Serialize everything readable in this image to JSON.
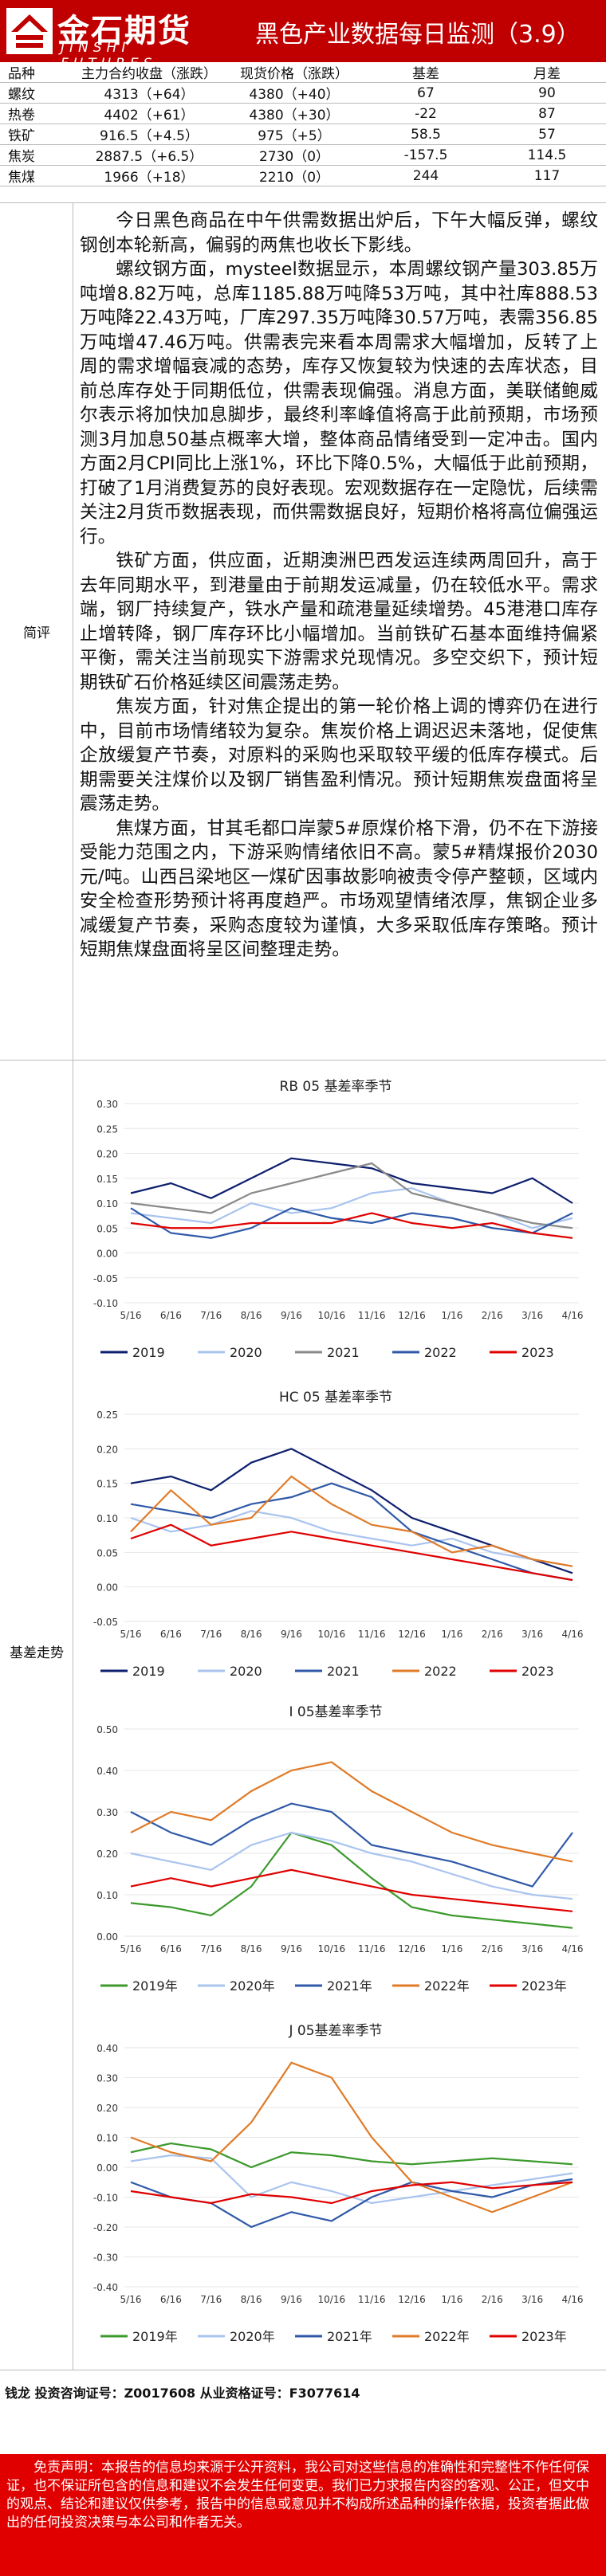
{
  "header": {
    "logo_cn": "金石期货",
    "logo_en": "JINSHI FUTURES",
    "title": "黑色产业数据每日监测（3.9）"
  },
  "table": {
    "headers": [
      "品种",
      "主力合约收盘（涨跌）",
      "现货价格（涨跌）",
      "基差",
      "月差"
    ],
    "rows": [
      [
        "螺纹",
        "4313（+64）",
        "4380（+40）",
        "67",
        "90"
      ],
      [
        "热卷",
        "4402（+61）",
        "4380（+30）",
        "-22",
        "87"
      ],
      [
        "铁矿",
        "916.5（+4.5）",
        "975（+5）",
        "58.5",
        "57"
      ],
      [
        "焦炭",
        "2887.5（+6.5）",
        "2730（0）",
        "-157.5",
        "114.5"
      ],
      [
        "焦煤",
        "1966（+18）",
        "2210（0）",
        "244",
        "117"
      ]
    ]
  },
  "labels": {
    "comment": "简评",
    "basis": "基差走势"
  },
  "comment": [
    "今日黑色商品在中午供需数据出炉后，下午大幅反弹，螺纹钢创本轮新高，偏弱的两焦也收长下影线。",
    "螺纹钢方面，mysteel数据显示，本周螺纹钢产量303.85万吨增8.82万吨，总库1185.88万吨降53万吨，其中社库888.53万吨降22.43万吨，厂库297.35万吨降30.57万吨，表需356.85万吨增47.46万吨。供需表完来看本周需求大幅增加，反转了上周的需求增幅衰减的态势，库存又恢复较为快速的去库状态，目前总库存处于同期低位，供需表现偏强。消息方面，美联储鲍威尔表示将加快加息脚步，最终利率峰值将高于此前预期，市场预测3月加息50基点概率大增，整体商品情绪受到一定冲击。国内方面2月CPI同比上涨1%，环比下降0.5%，大幅低于此前预期，打破了1月消费复苏的良好表现。宏观数据存在一定隐忧，后续需关注2月货币数据表现，而供需数据良好，短期价格将高位偏强运行。",
    "铁矿方面，供应面，近期澳洲巴西发运连续两周回升，高于去年同期水平，到港量由于前期发运减量，仍在较低水平。需求端，钢厂持续复产，铁水产量和疏港量延续增势。45港港口库存止增转降，钢厂库存环比小幅增加。当前铁矿石基本面维持偏紧平衡，需关注当前现实下游需求兑现情况。多空交织下，预计短期铁矿石价格延续区间震荡走势。",
    "焦炭方面，针对焦企提出的第一轮价格上调的博弈仍在进行中，目前市场情绪较为复杂。焦炭价格上调迟迟未落地，促使焦企放缓复产节奏，对原料的采购也采取较平缓的低库存模式。后期需要关注煤价以及钢厂销售盈利情况。预计短期焦炭盘面将呈震荡走势。",
    "焦煤方面，甘其毛都口岸蒙5#原煤价格下滑，仍不在下游接受能力范围之内，下游采购情绪依旧不高。蒙5#精煤报价2030元/吨。山西吕梁地区一煤矿因事故影响被责令停产整顿，区域内安全检查形势预计将再度趋严。市场观望情绪浓厚，焦钢企业多减缓复产节奏，采购态度较为谨慎，大多采取低库存策略。预计短期焦煤盘面将呈区间整理走势。"
  ],
  "chart_data": [
    {
      "type": "line",
      "title": "RB 05 基差率季节",
      "ylim": [
        -0.1,
        0.3
      ],
      "yticks": [
        "0.30",
        "0.25",
        "0.20",
        "0.15",
        "0.10",
        "0.05",
        "0.00",
        "-0.05",
        "-0.10"
      ],
      "xticks": [
        "5/16",
        "6/16",
        "7/16",
        "8/16",
        "9/16",
        "10/16",
        "11/16",
        "12/16",
        "1/16",
        "2/16",
        "3/16",
        "4/16"
      ],
      "series": [
        {
          "name": "2019",
          "color": "#0d1f6e",
          "values": [
            0.12,
            0.14,
            0.11,
            0.15,
            0.19,
            0.18,
            0.17,
            0.14,
            0.13,
            0.12,
            0.15,
            0.1
          ]
        },
        {
          "name": "2020",
          "color": "#a9c4ee",
          "values": [
            0.08,
            0.07,
            0.06,
            0.1,
            0.08,
            0.09,
            0.12,
            0.13,
            0.1,
            0.08,
            0.05,
            0.07
          ]
        },
        {
          "name": "2021",
          "color": "#8a8a8a",
          "values": [
            0.1,
            0.09,
            0.08,
            0.12,
            0.14,
            0.16,
            0.18,
            0.12,
            0.1,
            0.08,
            0.06,
            0.05
          ]
        },
        {
          "name": "2022",
          "color": "#2f59a8",
          "values": [
            0.09,
            0.04,
            0.03,
            0.05,
            0.09,
            0.07,
            0.06,
            0.08,
            0.07,
            0.05,
            0.04,
            0.08
          ]
        },
        {
          "name": "2023",
          "color": "#e00000",
          "values": [
            0.06,
            0.05,
            0.05,
            0.06,
            0.06,
            0.06,
            0.08,
            0.06,
            0.05,
            0.06,
            0.04,
            0.03
          ]
        }
      ]
    },
    {
      "type": "line",
      "title": "HC 05 基差率季节",
      "ylim": [
        -0.05,
        0.25
      ],
      "yticks": [
        "0.25",
        "0.20",
        "0.15",
        "0.10",
        "0.05",
        "0.00",
        "-0.05"
      ],
      "xticks": [
        "5/16",
        "6/16",
        "7/16",
        "8/16",
        "9/16",
        "10/16",
        "11/16",
        "12/16",
        "1/16",
        "2/16",
        "3/16",
        "4/16"
      ],
      "series": [
        {
          "name": "2019",
          "color": "#0d1f6e",
          "values": [
            0.15,
            0.16,
            0.14,
            0.18,
            0.2,
            0.17,
            0.14,
            0.1,
            0.08,
            0.06,
            0.04,
            0.02
          ]
        },
        {
          "name": "2020",
          "color": "#a9c4ee",
          "values": [
            0.1,
            0.08,
            0.09,
            0.11,
            0.1,
            0.08,
            0.07,
            0.06,
            0.07,
            0.05,
            0.04,
            0.03
          ]
        },
        {
          "name": "2021",
          "color": "#2f59a8",
          "values": [
            0.12,
            0.11,
            0.1,
            0.12,
            0.13,
            0.15,
            0.13,
            0.08,
            0.06,
            0.04,
            0.02,
            0.01
          ]
        },
        {
          "name": "2022",
          "color": "#e07b28",
          "values": [
            0.08,
            0.14,
            0.09,
            0.1,
            0.16,
            0.12,
            0.09,
            0.08,
            0.05,
            0.06,
            0.04,
            0.03
          ]
        },
        {
          "name": "2023",
          "color": "#e00000",
          "values": [
            0.07,
            0.09,
            0.06,
            0.07,
            0.08,
            0.07,
            0.06,
            0.05,
            0.04,
            0.03,
            0.02,
            0.01
          ]
        }
      ]
    },
    {
      "type": "line",
      "title": "I 05基差率季节",
      "ylim": [
        0,
        0.5
      ],
      "yticks": [
        "0.50",
        "0.40",
        "0.30",
        "0.20",
        "0.10",
        "0.00"
      ],
      "xticks": [
        "5/16",
        "6/16",
        "7/16",
        "8/16",
        "9/16",
        "10/16",
        "11/16",
        "12/16",
        "1/16",
        "2/16",
        "3/16",
        "4/16"
      ],
      "series": [
        {
          "name": "2019年",
          "color": "#3c9a2c",
          "values": [
            0.08,
            0.07,
            0.05,
            0.12,
            0.25,
            0.22,
            0.14,
            0.07,
            0.05,
            0.04,
            0.03,
            0.02
          ]
        },
        {
          "name": "2020年",
          "color": "#a9c4ee",
          "values": [
            0.2,
            0.18,
            0.16,
            0.22,
            0.25,
            0.23,
            0.2,
            0.18,
            0.15,
            0.12,
            0.1,
            0.09
          ]
        },
        {
          "name": "2021年",
          "color": "#2f59a8",
          "values": [
            0.3,
            0.25,
            0.22,
            0.28,
            0.32,
            0.3,
            0.22,
            0.2,
            0.18,
            0.15,
            0.12,
            0.25
          ]
        },
        {
          "name": "2022年",
          "color": "#e07b28",
          "values": [
            0.25,
            0.3,
            0.28,
            0.35,
            0.4,
            0.42,
            0.35,
            0.3,
            0.25,
            0.22,
            0.2,
            0.18
          ]
        },
        {
          "name": "2023年",
          "color": "#e00000",
          "values": [
            0.12,
            0.14,
            0.12,
            0.14,
            0.16,
            0.14,
            0.12,
            0.1,
            0.09,
            0.08,
            0.07,
            0.06
          ]
        }
      ]
    },
    {
      "type": "line",
      "title": "J 05基差率季节",
      "ylim": [
        -0.4,
        0.4
      ],
      "yticks": [
        "0.40",
        "0.30",
        "0.20",
        "0.10",
        "0.00",
        "-0.10",
        "-0.20",
        "-0.30",
        "-0.40"
      ],
      "xticks": [
        "5/16",
        "6/16",
        "7/16",
        "8/16",
        "9/16",
        "10/16",
        "11/16",
        "12/16",
        "1/16",
        "2/16",
        "3/16",
        "4/16"
      ],
      "series": [
        {
          "name": "2019年",
          "color": "#3c9a2c",
          "values": [
            0.05,
            0.08,
            0.06,
            0.0,
            0.05,
            0.04,
            0.02,
            0.01,
            0.02,
            0.03,
            0.02,
            0.01
          ]
        },
        {
          "name": "2020年",
          "color": "#a9c4ee",
          "values": [
            0.02,
            0.04,
            0.03,
            -0.1,
            -0.05,
            -0.08,
            -0.12,
            -0.1,
            -0.08,
            -0.06,
            -0.04,
            -0.02
          ]
        },
        {
          "name": "2021年",
          "color": "#2f59a8",
          "values": [
            -0.05,
            -0.1,
            -0.12,
            -0.2,
            -0.15,
            -0.18,
            -0.1,
            -0.05,
            -0.08,
            -0.1,
            -0.06,
            -0.04
          ]
        },
        {
          "name": "2022年",
          "color": "#e07b28",
          "values": [
            0.1,
            0.05,
            0.02,
            0.15,
            0.35,
            0.3,
            0.1,
            -0.05,
            -0.1,
            -0.15,
            -0.1,
            -0.05
          ]
        },
        {
          "name": "2023年",
          "color": "#e00000",
          "values": [
            -0.08,
            -0.1,
            -0.12,
            -0.09,
            -0.1,
            -0.12,
            -0.08,
            -0.06,
            -0.05,
            -0.07,
            -0.06,
            -0.05
          ]
        }
      ]
    }
  ],
  "footer": {
    "analyst": "钱龙  投资咨询证号：Z0017608  从业资格证号：F3077614",
    "disclaimer": "免责声明：本报告的信息均来源于公开资料，我公司对这些信息的准确性和完整性不作任何保证，也不保证所包含的信息和建议不会发生任何变更。我们已力求报告内容的客观、公正，但文中的观点、结论和建议仅供参考，报告中的信息或意见并不构成所述品种的操作依据，投资者据此做出的任何投资决策与本公司和作者无关。"
  }
}
